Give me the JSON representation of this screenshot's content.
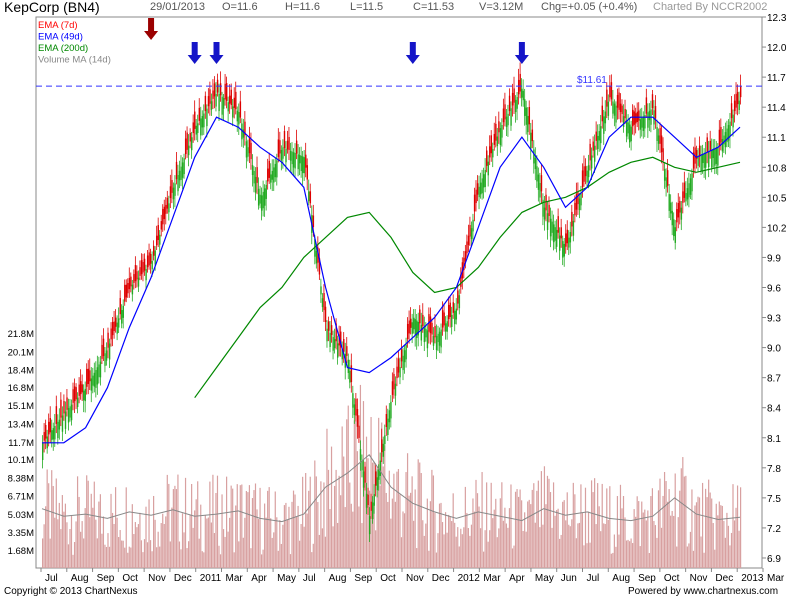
{
  "header": {
    "title": "KepCorp (BN4)",
    "date": "29/01/2013",
    "open": "O=11.6",
    "high": "H=11.6",
    "low": "L=11.5",
    "close": "C=11.53",
    "volume": "V=3.12M",
    "change": "Chg=+0.05 (+0.4%)",
    "charted_by": "Charted By NCCR2002"
  },
  "footer": {
    "copyright": "Copyright © 2013 ChartNexus",
    "powered_by": "Powered by www.chartnexus.com"
  },
  "colors": {
    "ema7": "#ff0000",
    "ema49": "#0000ff",
    "ema200": "#008800",
    "volume_ma": "#888888",
    "up_candle": "#22aa22",
    "down_candle": "#dd0000",
    "volume_bar": "#d8a0a0",
    "resistance": "#3333ff",
    "marker_red": "#9b0000",
    "marker_blue": "#1515c8"
  },
  "chart_data": {
    "type": "candlestick",
    "symbol": "KepCorp (BN4)",
    "legend": [
      {
        "name": "EMA (7d)",
        "color": "#ff0000"
      },
      {
        "name": "EMA (49d)",
        "color": "#0000ff"
      },
      {
        "name": "EMA (200d)",
        "color": "#008800"
      },
      {
        "name": "Volume MA (14d)",
        "color": "#888888"
      }
    ],
    "legend_position": "top-left",
    "x_labels": [
      "Jul",
      "Aug",
      "Sep",
      "Oct",
      "Nov",
      "Dec",
      "2011",
      "Mar",
      "Apr",
      "May",
      "Jul",
      "Aug",
      "Sep",
      "Oct",
      "Nov",
      "Dec",
      "2012",
      "Mar",
      "Apr",
      "May",
      "Jun",
      "Jul",
      "Aug",
      "Sep",
      "Oct",
      "Nov",
      "Dec",
      "2013",
      "Mar"
    ],
    "price_axis": {
      "ticks": [
        "12.3",
        "12.0",
        "11.7",
        "11.4",
        "11.1",
        "10.8",
        "10.5",
        "10.2",
        "9.9",
        "9.6",
        "9.3",
        "9.0",
        "8.7",
        "8.4",
        "8.1",
        "7.8",
        "7.5",
        "7.2",
        "6.9"
      ],
      "range": [
        6.8,
        12.3
      ]
    },
    "volume_axis": {
      "ticks": [
        "21.8M",
        "20.1M",
        "18.4M",
        "16.8M",
        "15.1M",
        "13.4M",
        "11.7M",
        "10.1M",
        "8.38M",
        "6.71M",
        "5.03M",
        "3.35M",
        "1.68M"
      ],
      "max": 23.0
    },
    "resistance_line": {
      "value": 11.61,
      "label": "$11.61"
    },
    "grid": false,
    "markers": [
      {
        "type": "sell-arrow",
        "color": "red",
        "month": "Dec",
        "index": 5
      },
      {
        "type": "arrow",
        "color": "blue",
        "month": "Mar",
        "index": 7
      },
      {
        "type": "arrow",
        "color": "blue",
        "month": "Apr",
        "index": 8
      },
      {
        "type": "arrow",
        "color": "blue",
        "month": "Mar 2012",
        "index": 17
      },
      {
        "type": "arrow",
        "color": "blue",
        "month": "Aug 2012",
        "index": 22
      }
    ],
    "close_path": [
      [
        0,
        8.05
      ],
      [
        1,
        8.35
      ],
      [
        2,
        8.6
      ],
      [
        3,
        9.0
      ],
      [
        4,
        9.6
      ],
      [
        5,
        9.85
      ],
      [
        6,
        10.6
      ],
      [
        7,
        11.2
      ],
      [
        8,
        11.55
      ],
      [
        9,
        11.35
      ],
      [
        10,
        10.5
      ],
      [
        11,
        11.0
      ],
      [
        12,
        10.9
      ],
      [
        13,
        9.2
      ],
      [
        14,
        8.9
      ],
      [
        15,
        7.3
      ],
      [
        16,
        8.5
      ],
      [
        17,
        9.3
      ],
      [
        18,
        9.1
      ],
      [
        19,
        9.4
      ],
      [
        20,
        10.6
      ],
      [
        21,
        11.2
      ],
      [
        22,
        11.6
      ],
      [
        23,
        10.4
      ],
      [
        24,
        10.0
      ],
      [
        25,
        10.8
      ],
      [
        26,
        11.5
      ],
      [
        27,
        11.2
      ],
      [
        28,
        11.4
      ],
      [
        29,
        10.2
      ],
      [
        30,
        10.9
      ],
      [
        31,
        11.0
      ],
      [
        32,
        11.5
      ]
    ],
    "ema49_path": [
      [
        0,
        8.05
      ],
      [
        1,
        8.05
      ],
      [
        2,
        8.2
      ],
      [
        3,
        8.6
      ],
      [
        4,
        9.2
      ],
      [
        5,
        9.7
      ],
      [
        6,
        10.3
      ],
      [
        7,
        10.9
      ],
      [
        8,
        11.3
      ],
      [
        9,
        11.2
      ],
      [
        10,
        11.0
      ],
      [
        11,
        10.85
      ],
      [
        12,
        10.6
      ],
      [
        13,
        9.6
      ],
      [
        14,
        8.8
      ],
      [
        15,
        8.75
      ],
      [
        16,
        8.9
      ],
      [
        17,
        9.1
      ],
      [
        18,
        9.3
      ],
      [
        19,
        9.6
      ],
      [
        20,
        10.2
      ],
      [
        21,
        10.8
      ],
      [
        22,
        11.1
      ],
      [
        23,
        10.8
      ],
      [
        24,
        10.4
      ],
      [
        25,
        10.6
      ],
      [
        26,
        11.1
      ],
      [
        27,
        11.3
      ],
      [
        28,
        11.3
      ],
      [
        29,
        11.1
      ],
      [
        30,
        10.9
      ],
      [
        31,
        11.0
      ],
      [
        32,
        11.2
      ]
    ],
    "ema200_path": [
      [
        7,
        8.5
      ],
      [
        8,
        8.8
      ],
      [
        9,
        9.1
      ],
      [
        10,
        9.4
      ],
      [
        11,
        9.6
      ],
      [
        12,
        9.9
      ],
      [
        13,
        10.1
      ],
      [
        14,
        10.3
      ],
      [
        15,
        10.35
      ],
      [
        16,
        10.1
      ],
      [
        17,
        9.75
      ],
      [
        18,
        9.55
      ],
      [
        19,
        9.6
      ],
      [
        20,
        9.8
      ],
      [
        21,
        10.1
      ],
      [
        22,
        10.35
      ],
      [
        23,
        10.45
      ],
      [
        24,
        10.5
      ],
      [
        25,
        10.6
      ],
      [
        26,
        10.75
      ],
      [
        27,
        10.85
      ],
      [
        28,
        10.9
      ],
      [
        29,
        10.8
      ],
      [
        30,
        10.75
      ],
      [
        31,
        10.8
      ],
      [
        32,
        10.85
      ]
    ],
    "volume_ma_path": [
      [
        0,
        5.5
      ],
      [
        1,
        4.8
      ],
      [
        2,
        5.0
      ],
      [
        3,
        4.6
      ],
      [
        4,
        5.2
      ],
      [
        5,
        4.9
      ],
      [
        6,
        5.4
      ],
      [
        7,
        4.8
      ],
      [
        8,
        5.0
      ],
      [
        9,
        5.3
      ],
      [
        10,
        4.6
      ],
      [
        11,
        4.3
      ],
      [
        12,
        5.0
      ],
      [
        13,
        7.5
      ],
      [
        14,
        8.8
      ],
      [
        15,
        10.5
      ],
      [
        16,
        7.5
      ],
      [
        17,
        6.0
      ],
      [
        18,
        5.2
      ],
      [
        19,
        4.6
      ],
      [
        20,
        5.2
      ],
      [
        21,
        4.8
      ],
      [
        22,
        4.4
      ],
      [
        23,
        5.5
      ],
      [
        24,
        4.9
      ],
      [
        25,
        5.2
      ],
      [
        26,
        4.6
      ],
      [
        27,
        4.4
      ],
      [
        28,
        4.8
      ],
      [
        29,
        6.5
      ],
      [
        30,
        5.0
      ],
      [
        31,
        4.5
      ],
      [
        32,
        4.7
      ]
    ]
  }
}
